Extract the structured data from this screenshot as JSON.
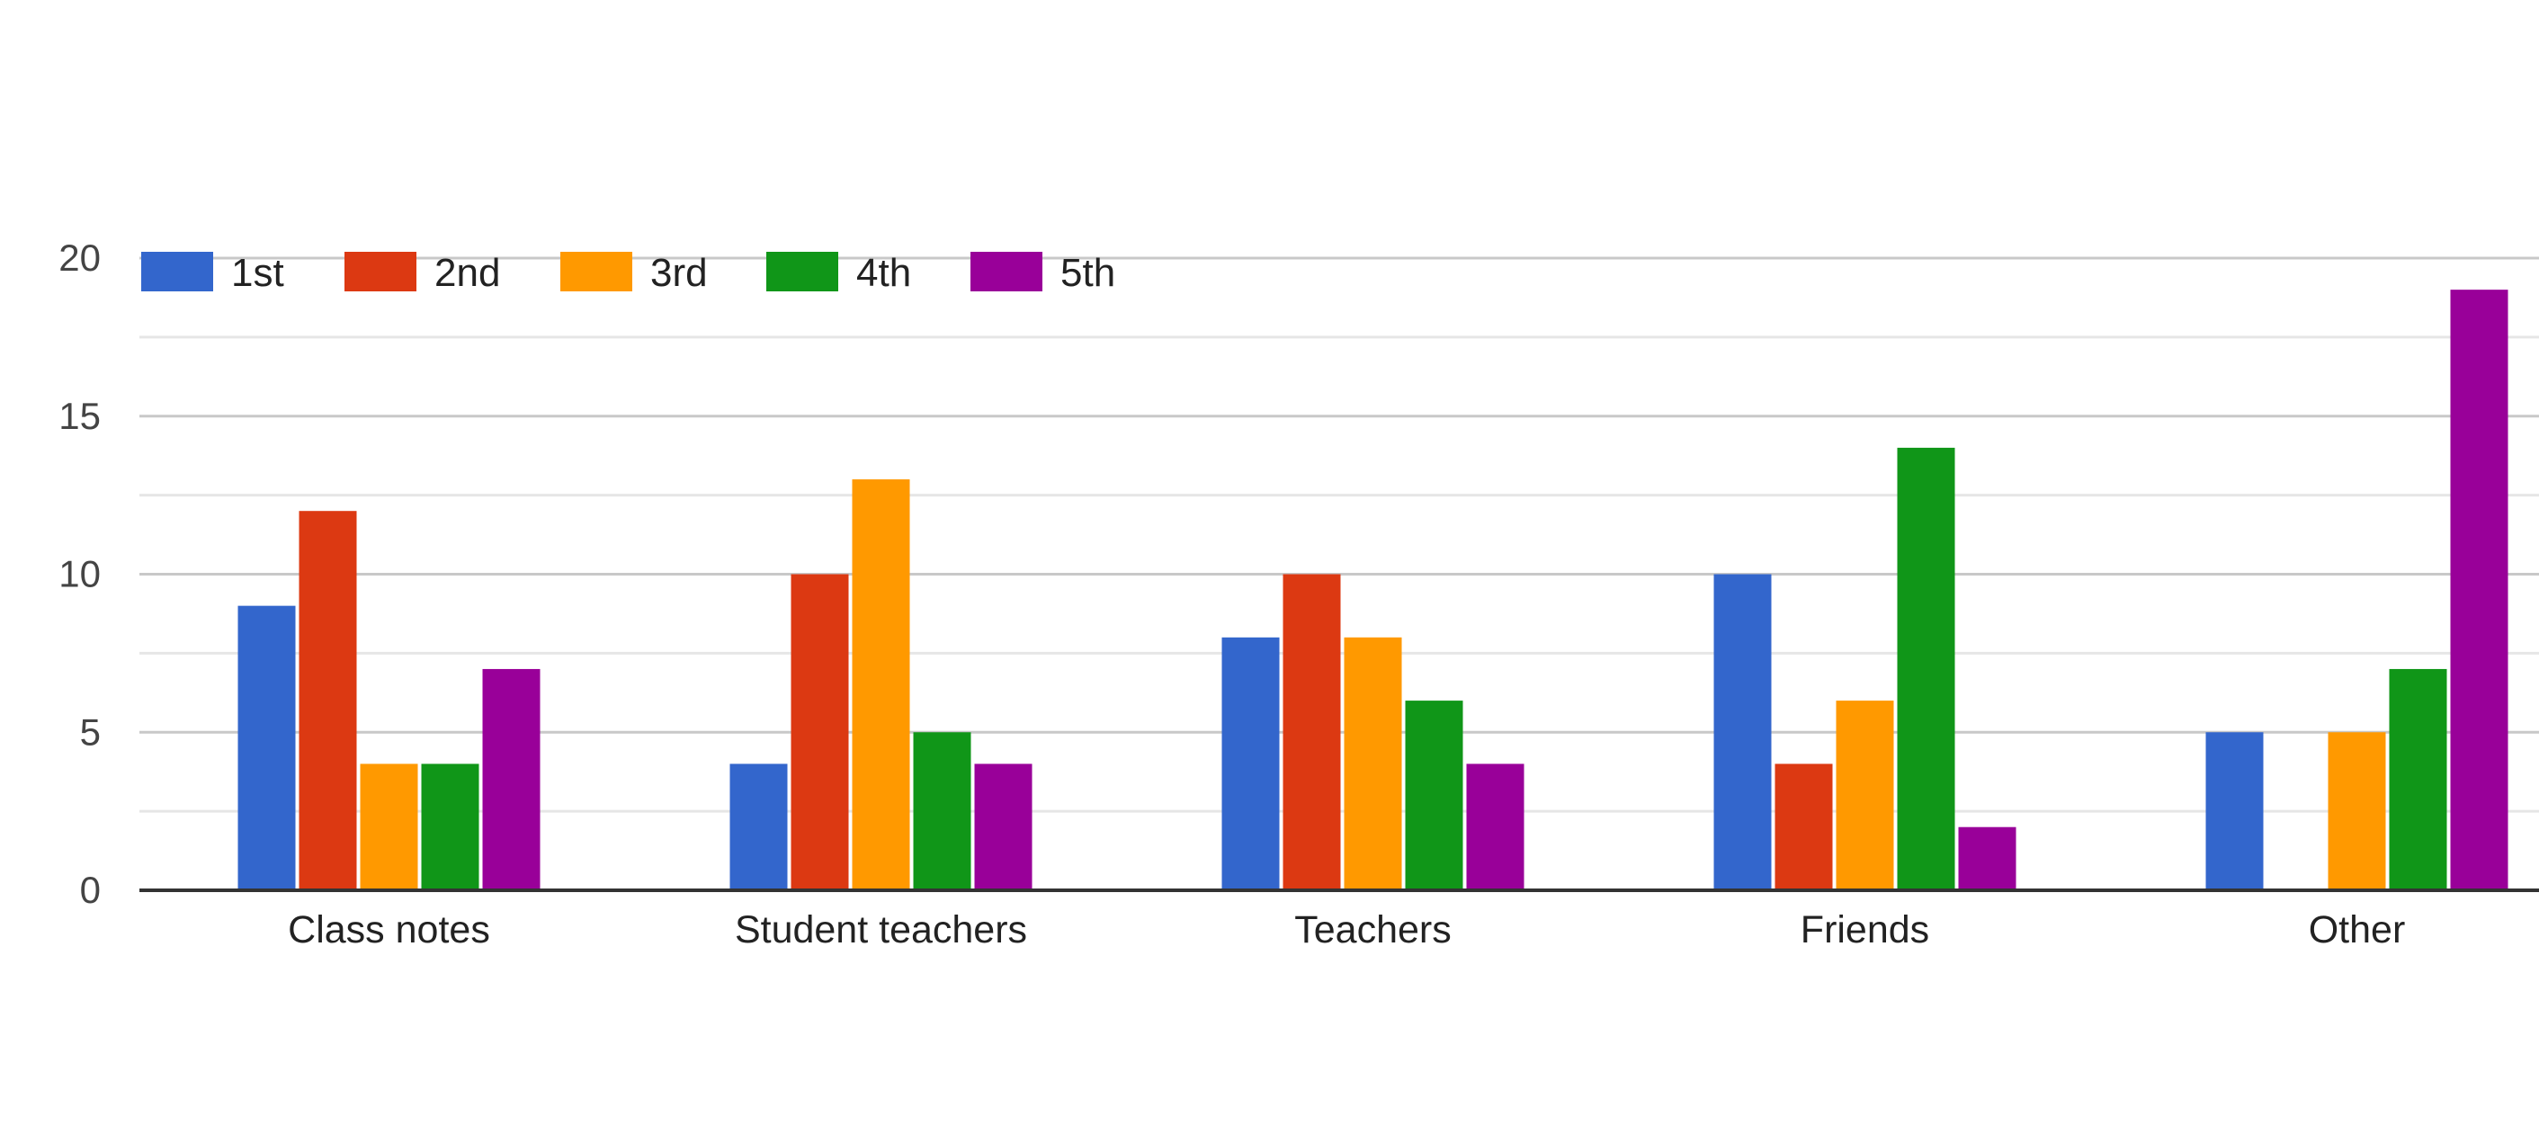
{
  "chart_data": {
    "type": "bar",
    "title": "",
    "xlabel": "",
    "ylabel": "",
    "ylim": [
      0,
      20
    ],
    "yticks": [
      0,
      5,
      10,
      15,
      20
    ],
    "grid": true,
    "legend_position": "top-left",
    "categories": [
      "Class notes",
      "Student teachers",
      "Teachers",
      "Friends",
      "Other"
    ],
    "series": [
      {
        "name": "1st",
        "color": "#3366cc",
        "values": [
          9,
          4,
          8,
          10,
          5
        ]
      },
      {
        "name": "2nd",
        "color": "#dc3912",
        "values": [
          12,
          10,
          10,
          4,
          0
        ]
      },
      {
        "name": "3rd",
        "color": "#ff9900",
        "values": [
          4,
          13,
          8,
          6,
          5
        ]
      },
      {
        "name": "4th",
        "color": "#109618",
        "values": [
          4,
          5,
          6,
          14,
          7
        ]
      },
      {
        "name": "5th",
        "color": "#990099",
        "values": [
          7,
          4,
          4,
          2,
          19
        ]
      }
    ]
  }
}
